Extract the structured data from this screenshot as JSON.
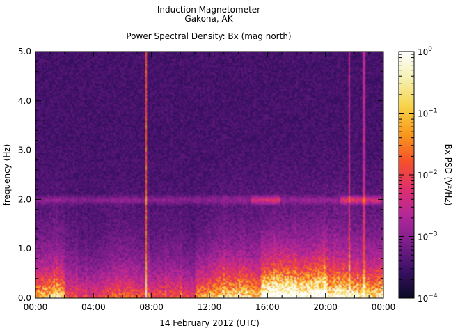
{
  "chart_data": {
    "type": "heatmap",
    "title_lines": [
      "Induction Magnetometer",
      "Gakona, AK"
    ],
    "subtitle": "Power Spectral Density: Bx (mag north)",
    "ylabel": "frequency (Hz)",
    "xlabel": "14 February 2012 (UTC)",
    "ylim": [
      0,
      5
    ],
    "xlim_hours": [
      0,
      24
    ],
    "x_ticks": [
      {
        "hour": 0,
        "label": "00:00"
      },
      {
        "hour": 4,
        "label": "04:00"
      },
      {
        "hour": 8,
        "label": "08:00"
      },
      {
        "hour": 12,
        "label": "12:00"
      },
      {
        "hour": 16,
        "label": "16:00"
      },
      {
        "hour": 20,
        "label": "20:00"
      },
      {
        "hour": 24,
        "label": "00:00"
      }
    ],
    "y_ticks": [
      {
        "value": 0,
        "label": "0.0"
      },
      {
        "value": 1,
        "label": "1.0"
      },
      {
        "value": 2,
        "label": "2.0"
      },
      {
        "value": 3,
        "label": "3.0"
      },
      {
        "value": 4,
        "label": "4.0"
      },
      {
        "value": 5,
        "label": "5.0"
      }
    ],
    "colorbar": {
      "label": "Bx PSD (V²/Hz)",
      "scale": "log",
      "range": [
        0.0001,
        1
      ],
      "ticks": [
        {
          "value": 1,
          "base": "10",
          "exp": "0"
        },
        {
          "value": 0.1,
          "base": "10",
          "exp": "−1"
        },
        {
          "value": 0.01,
          "base": "10",
          "exp": "−2"
        },
        {
          "value": 0.001,
          "base": "10",
          "exp": "−3"
        },
        {
          "value": 0.0001,
          "base": "10",
          "exp": "−4"
        }
      ],
      "colors": [
        "#0a0a23",
        "#3a1065",
        "#7a1e8a",
        "#b2279a",
        "#e0306c",
        "#f5522a",
        "#f99a1c",
        "#f7d34a",
        "#f5f0b0",
        "#ffffff"
      ]
    },
    "grid": false,
    "features": {
      "band_hz": 2.0,
      "band_strong_hours": [
        [
          14.8,
          16.8
        ],
        [
          21.0,
          23.8
        ]
      ],
      "vertical_lines": [
        {
          "hour": 7.55,
          "level": "strong"
        },
        {
          "hour": 21.6,
          "level": "medium"
        },
        {
          "hour": 22.6,
          "level": "medium"
        }
      ],
      "low_freq_enhancement_hours": [
        [
          0,
          2
        ],
        [
          11,
          24
        ]
      ]
    }
  }
}
